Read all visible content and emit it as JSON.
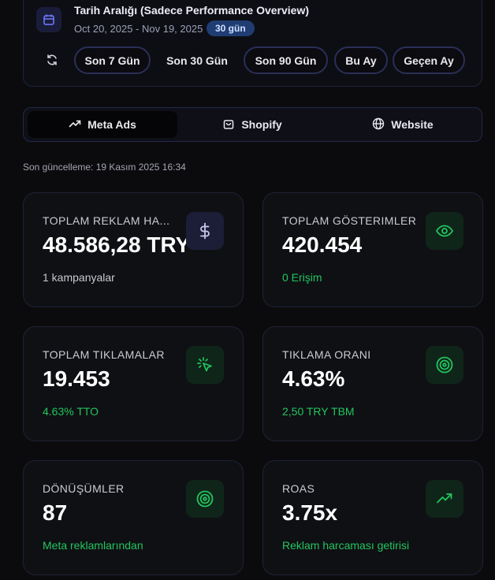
{
  "date_range": {
    "title": "Tarih Aralığı (Sadece Performance Overview)",
    "range": "Oct 20, 2025 - Nov 19, 2025",
    "badge": "30 gün",
    "presets": [
      "Son 7 Gün",
      "Son 30 Gün",
      "Son 90 Gün",
      "Bu Ay",
      "Geçen Ay"
    ],
    "selected": "Son 30 Gün"
  },
  "tabs": [
    {
      "label": "Meta Ads",
      "icon": "trending-up-icon",
      "active": true
    },
    {
      "label": "Shopify",
      "icon": "shopping-bag-icon",
      "active": false
    },
    {
      "label": "Website",
      "icon": "globe-icon",
      "active": false
    }
  ],
  "last_update": "Son güncelleme: 19 Kasım 2025 16:34",
  "metrics": [
    {
      "label": "TOPLAM REKLAM HA...",
      "value": "48.586,28 TRY",
      "sub": "1 kampanyalar",
      "icon": "dollar-icon"
    },
    {
      "label": "TOPLAM GÖSTERIMLER",
      "value": "420.454",
      "sub": "0 Erişim",
      "icon": "eye-icon"
    },
    {
      "label": "TOPLAM TIKLAMALAR",
      "value": "19.453",
      "sub": "4.63% TTO",
      "icon": "cursor-click-icon"
    },
    {
      "label": "TIKLAMA ORANI",
      "value": "4.63%",
      "sub": "2,50 TRY TBM",
      "icon": "target-icon"
    },
    {
      "label": "DÖNÜŞÜMLER",
      "value": "87",
      "sub": "Meta reklamlarından",
      "icon": "target-icon"
    },
    {
      "label": "ROAS",
      "value": "3.75x",
      "sub": "Reklam harcaması getirisi",
      "icon": "trending-up-icon"
    }
  ],
  "colors": {
    "accent_green": "#22c55e",
    "accent_blue": "#7c8cff",
    "badge_bg": "#1f3d73"
  }
}
